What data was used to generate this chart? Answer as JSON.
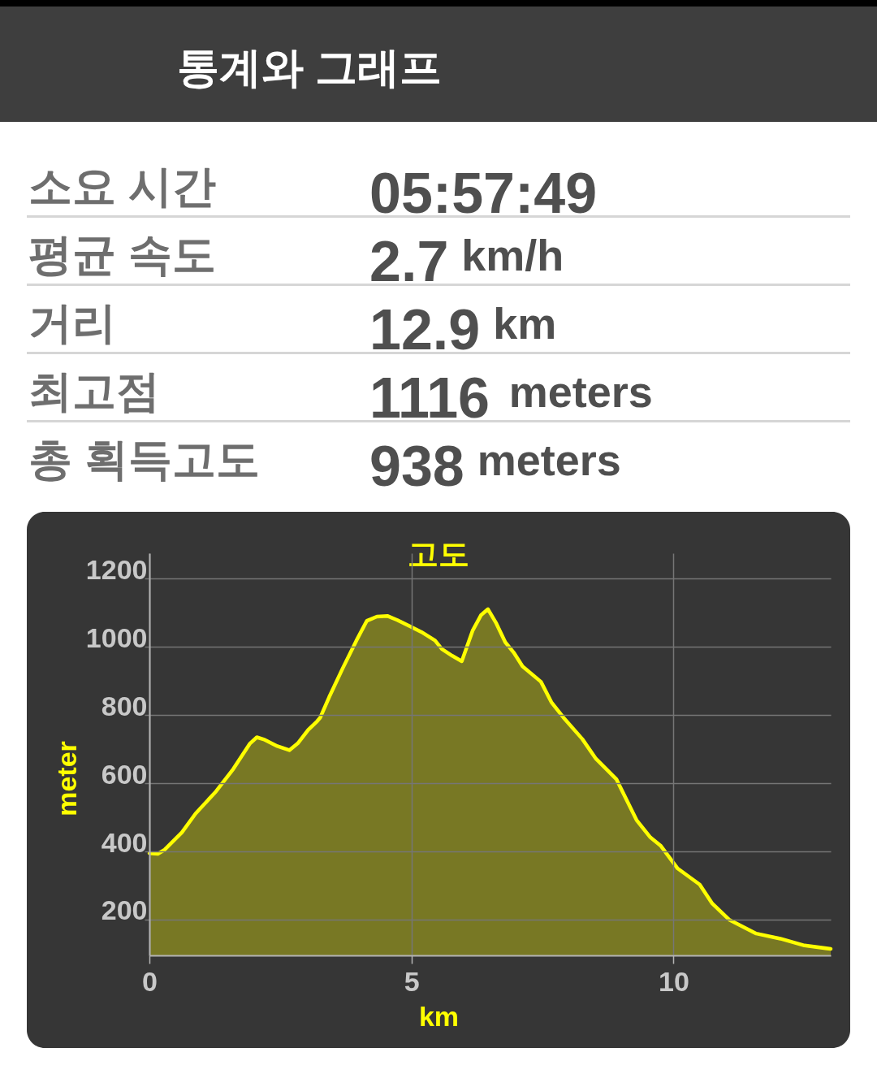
{
  "chart_data": {
    "type": "area",
    "title": "고도",
    "xlabel": "km",
    "ylabel": "meter",
    "x": [
      0,
      0.16,
      0.29,
      0.62,
      0.88,
      1.27,
      1.6,
      1.92,
      2.05,
      2.18,
      2.44,
      2.67,
      2.83,
      3.03,
      3.2,
      3.26,
      3.43,
      3.69,
      3.95,
      4.15,
      4.34,
      4.54,
      4.73,
      4.99,
      5.19,
      5.45,
      5.58,
      5.78,
      5.96,
      6.17,
      6.33,
      6.46,
      6.62,
      6.79,
      6.95,
      7.12,
      7.47,
      7.67,
      7.9,
      8.26,
      8.52,
      8.91,
      9.3,
      9.56,
      9.76,
      10.08,
      10.5,
      10.74,
      11.06,
      11.58,
      12.04,
      12.5,
      13.0
    ],
    "values": [
      395,
      393,
      405,
      456,
      511,
      576,
      642,
      717,
      735,
      729,
      709,
      697,
      717,
      757,
      782,
      793,
      853,
      938,
      1019,
      1077,
      1089,
      1091,
      1079,
      1059,
      1044,
      1019,
      994,
      974,
      958,
      1049,
      1094,
      1111,
      1069,
      1014,
      984,
      943,
      898,
      838,
      793,
      730,
      672,
      612,
      491,
      441,
      416,
      350,
      303,
      247,
      200,
      159,
      144,
      124,
      114
    ],
    "color": "#ffff00",
    "xlim": [
      0,
      13
    ],
    "xticks": [
      0,
      5,
      10
    ],
    "ylim": [
      95,
      1275
    ],
    "yticks": [
      200,
      400,
      600,
      800,
      1000,
      1200
    ],
    "grid": true,
    "annotations": [
      "통계와 그래프",
      "소요 시간",
      "05:57:49",
      "평균 속도",
      "2.7 km/h",
      "거리",
      "12.9 km",
      "최고점",
      "1116 meters",
      "총 획득고도",
      "938 meters"
    ]
  }
}
